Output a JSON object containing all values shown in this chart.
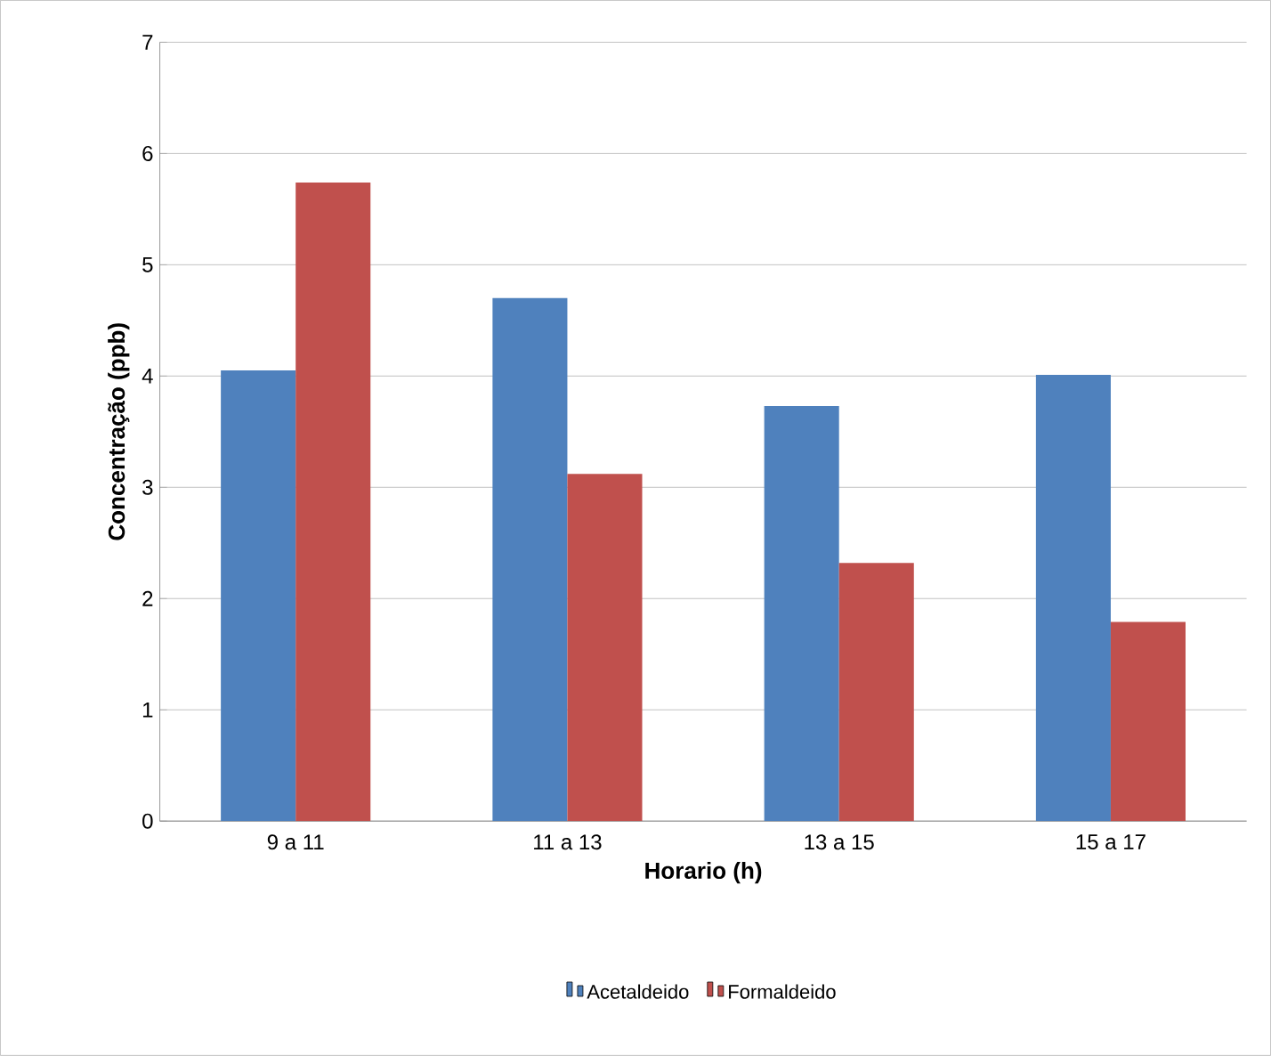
{
  "chart_data": {
    "type": "bar",
    "xlabel": "Horario (h)",
    "ylabel": "Concentração (ppb)",
    "categories": [
      "9 a 11",
      "11 a 13",
      "13 a 15",
      "15 a 17"
    ],
    "series": [
      {
        "name": "Acetaldeido",
        "color": "#4f81bd",
        "values": [
          4.05,
          4.7,
          3.73,
          4.01
        ]
      },
      {
        "name": "Formaldeido",
        "color": "#c0504d",
        "values": [
          5.74,
          3.12,
          2.32,
          1.79
        ]
      }
    ],
    "ylim": [
      0,
      7
    ],
    "yticks": [
      0,
      1,
      2,
      3,
      4,
      5,
      6,
      7
    ],
    "grid": "y",
    "legend": "bottom"
  }
}
